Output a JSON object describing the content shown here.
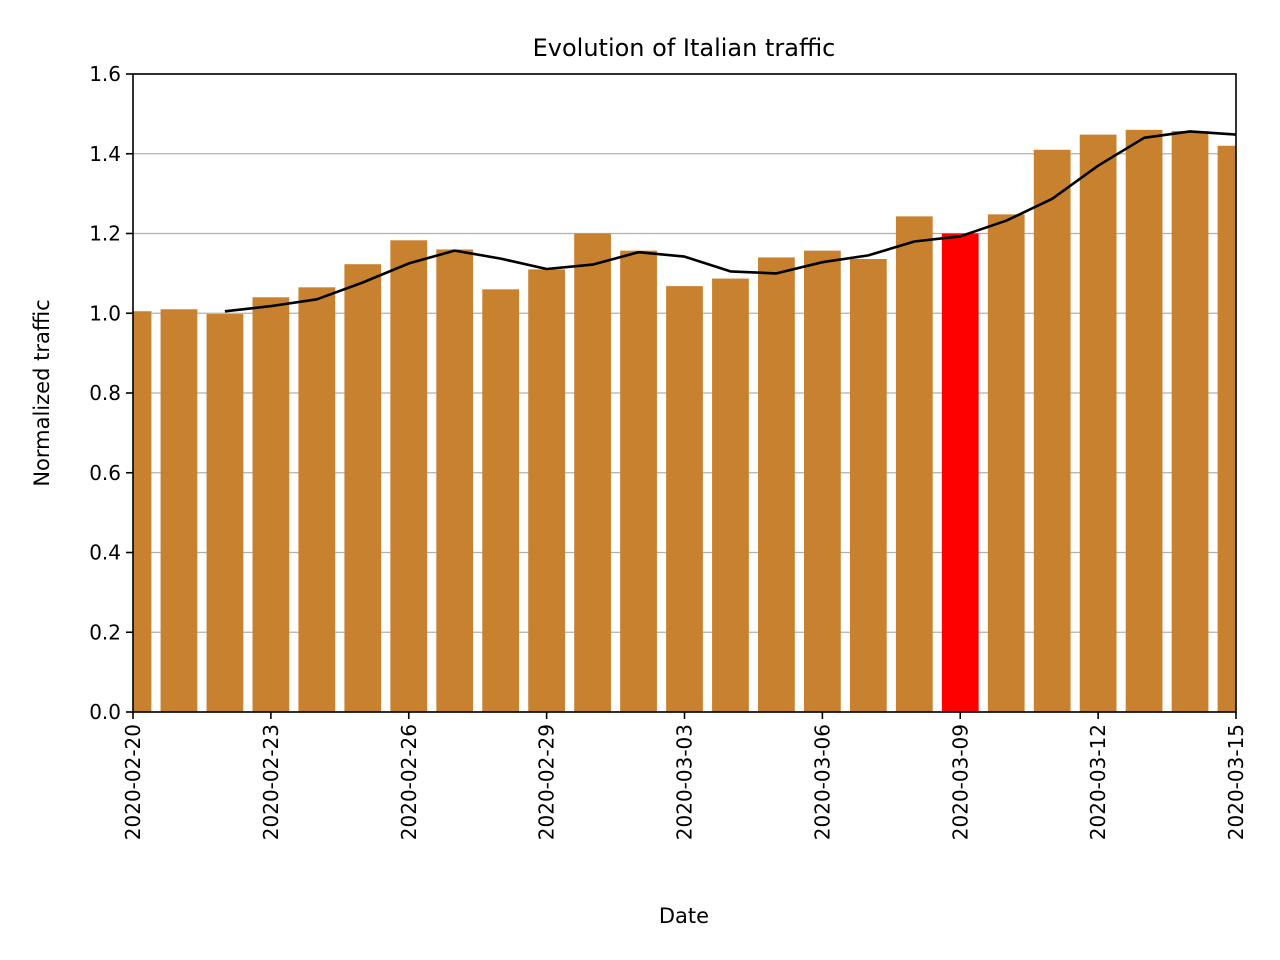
{
  "chart_data": {
    "type": "bar",
    "title": "Evolution of Italian traffic",
    "xlabel": "Date",
    "ylabel": "Normalized traffic",
    "ylim": [
      0,
      1.6
    ],
    "yticks": [
      "0.0",
      "0.2",
      "0.4",
      "0.6",
      "0.8",
      "1.0",
      "1.2",
      "1.4",
      "1.6"
    ],
    "xticks": [
      "2020-02-20",
      "2020-02-23",
      "2020-02-26",
      "2020-02-29",
      "2020-03-03",
      "2020-03-06",
      "2020-03-09",
      "2020-03-12",
      "2020-03-15"
    ],
    "grid": "horizontal",
    "categories": [
      "2020-02-20",
      "2020-02-21",
      "2020-02-22",
      "2020-02-23",
      "2020-02-24",
      "2020-02-25",
      "2020-02-26",
      "2020-02-27",
      "2020-02-28",
      "2020-02-29",
      "2020-03-01",
      "2020-03-02",
      "2020-03-03",
      "2020-03-04",
      "2020-03-05",
      "2020-03-06",
      "2020-03-07",
      "2020-03-08",
      "2020-03-09",
      "2020-03-10",
      "2020-03-11",
      "2020-03-12",
      "2020-03-13",
      "2020-03-14",
      "2020-03-15"
    ],
    "values": [
      1.005,
      1.01,
      0.998,
      1.04,
      1.065,
      1.123,
      1.183,
      1.16,
      1.06,
      1.11,
      1.2,
      1.157,
      1.068,
      1.087,
      1.14,
      1.157,
      1.136,
      1.243,
      1.2,
      1.248,
      1.41,
      1.448,
      1.46,
      1.457,
      1.42
    ],
    "highlight_category": "2020-03-09",
    "bar_color": "#c8812e",
    "highlight_color": "#ff0000",
    "line": {
      "color": "#000000",
      "start_category": "2020-02-22",
      "values": [
        1.005,
        1.018,
        1.035,
        1.077,
        1.125,
        1.157,
        1.137,
        1.111,
        1.122,
        1.153,
        1.142,
        1.105,
        1.1,
        1.128,
        1.145,
        1.18,
        1.193,
        1.232,
        1.287,
        1.37,
        1.44,
        1.456,
        1.448
      ]
    }
  }
}
